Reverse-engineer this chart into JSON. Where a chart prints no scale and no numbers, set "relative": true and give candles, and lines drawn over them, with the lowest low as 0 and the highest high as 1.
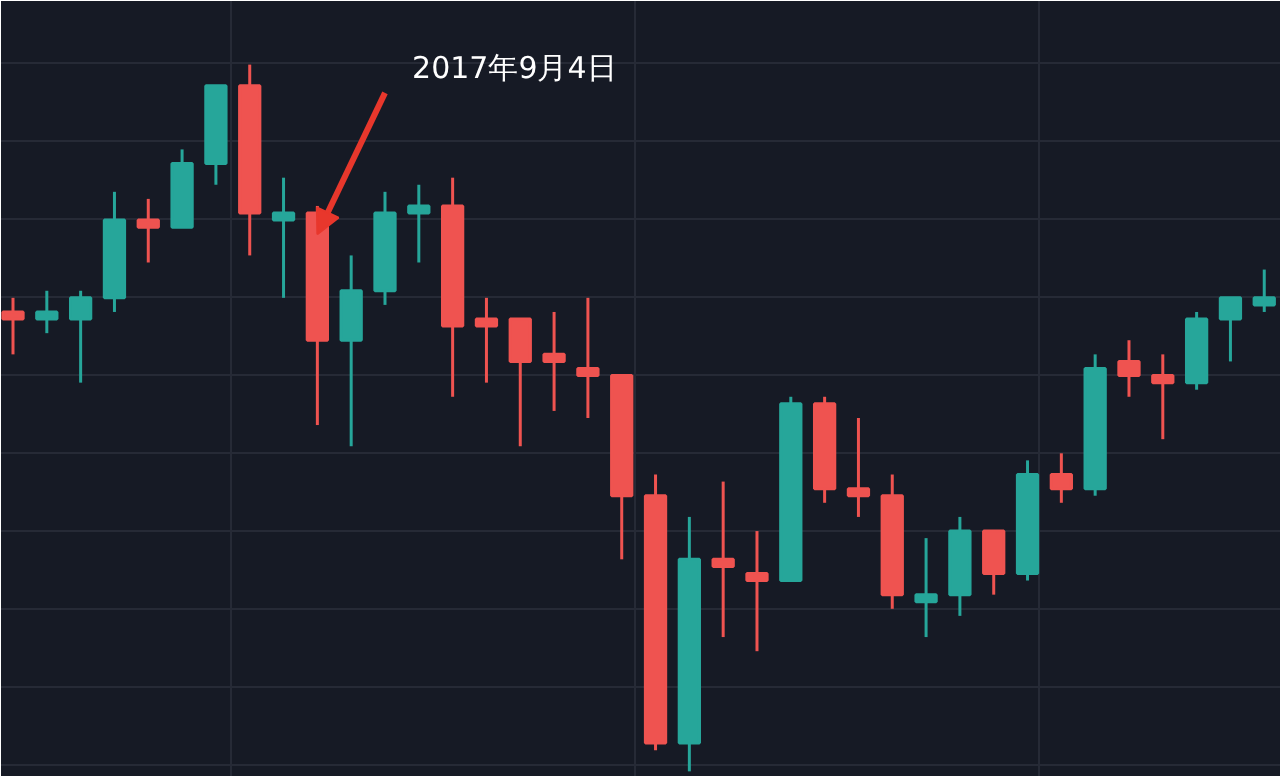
{
  "chart_data": {
    "type": "candlestick",
    "relative": true,
    "grid": true,
    "categories": [
      null,
      null,
      null,
      null,
      null,
      null,
      null,
      null,
      null,
      null,
      null,
      null,
      null,
      null,
      null,
      null,
      null,
      null,
      null,
      null,
      null,
      null,
      null,
      null,
      null,
      null,
      null,
      null,
      null,
      null,
      null,
      null,
      null,
      null,
      null,
      null,
      null,
      null
    ],
    "ohlc": [
      [
        0.65,
        0.67,
        0.59,
        0.64
      ],
      [
        0.64,
        0.68,
        0.62,
        0.65
      ],
      [
        0.64,
        0.68,
        0.55,
        0.67
      ],
      [
        0.67,
        0.82,
        0.65,
        0.78
      ],
      [
        0.78,
        0.81,
        0.72,
        0.77
      ],
      [
        0.77,
        0.88,
        0.77,
        0.86
      ],
      [
        0.86,
        0.97,
        0.83,
        0.97
      ],
      [
        0.97,
        1.0,
        0.73,
        0.79
      ],
      [
        0.78,
        0.84,
        0.67,
        0.79
      ],
      [
        0.79,
        0.8,
        0.49,
        0.61
      ],
      [
        0.61,
        0.73,
        0.46,
        0.68
      ],
      [
        0.68,
        0.82,
        0.66,
        0.79
      ],
      [
        0.79,
        0.83,
        0.72,
        0.8
      ],
      [
        0.8,
        0.84,
        0.53,
        0.63
      ],
      [
        0.64,
        0.67,
        0.55,
        0.63
      ],
      [
        0.64,
        0.64,
        0.46,
        0.58
      ],
      [
        0.59,
        0.65,
        0.51,
        0.58
      ],
      [
        0.57,
        0.67,
        0.5,
        0.56
      ],
      [
        0.56,
        0.56,
        0.3,
        0.39
      ],
      [
        0.39,
        0.42,
        0.03,
        0.04
      ],
      [
        0.04,
        0.36,
        0.0,
        0.3
      ],
      [
        0.3,
        0.41,
        0.19,
        0.29
      ],
      [
        0.28,
        0.34,
        0.17,
        0.27
      ],
      [
        0.27,
        0.53,
        0.27,
        0.52
      ],
      [
        0.52,
        0.53,
        0.38,
        0.4
      ],
      [
        0.4,
        0.5,
        0.36,
        0.39
      ],
      [
        0.39,
        0.42,
        0.23,
        0.25
      ],
      [
        0.24,
        0.33,
        0.19,
        0.25
      ],
      [
        0.25,
        0.36,
        0.22,
        0.34
      ],
      [
        0.34,
        0.34,
        0.25,
        0.28
      ],
      [
        0.28,
        0.44,
        0.27,
        0.42
      ],
      [
        0.42,
        0.45,
        0.38,
        0.4
      ],
      [
        0.4,
        0.59,
        0.39,
        0.57
      ],
      [
        0.58,
        0.61,
        0.53,
        0.56
      ],
      [
        0.56,
        0.59,
        0.47,
        0.55
      ],
      [
        0.55,
        0.65,
        0.54,
        0.64
      ],
      [
        0.64,
        0.67,
        0.58,
        0.67
      ],
      [
        0.66,
        0.71,
        0.65,
        0.67
      ]
    ],
    "colors": [
      "#ef5350",
      "#26a69a",
      "#26a69a",
      "#26a69a",
      "#ef5350",
      "#26a69a",
      "#26a69a",
      "#ef5350",
      "#26a69a",
      "#ef5350",
      "#26a69a",
      "#26a69a",
      "#26a69a",
      "#ef5350",
      "#ef5350",
      "#ef5350",
      "#ef5350",
      "#ef5350",
      "#ef5350",
      "#ef5350",
      "#26a69a",
      "#ef5350",
      "#ef5350",
      "#26a69a",
      "#ef5350",
      "#ef5350",
      "#ef5350",
      "#26a69a",
      "#26a69a",
      "#ef5350",
      "#26a69a",
      "#ef5350",
      "#26a69a",
      "#ef5350",
      "#ef5350",
      "#26a69a",
      "#26a69a",
      "#26a69a"
    ],
    "annotations": [
      "2017年9月4日"
    ]
  }
}
